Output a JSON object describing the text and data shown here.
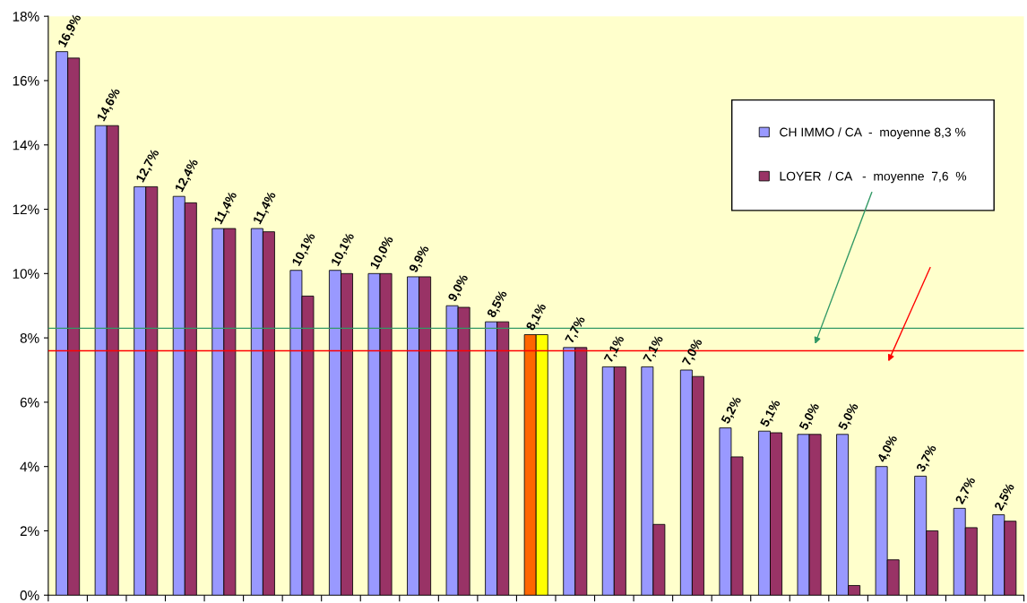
{
  "chart_data": {
    "type": "bar",
    "categories": [
      null,
      null,
      null,
      null,
      null,
      null,
      null,
      null,
      null,
      null,
      null,
      null,
      null,
      null,
      null,
      null,
      null,
      null,
      null,
      null,
      null,
      null,
      null,
      null,
      null
    ],
    "series": [
      {
        "name": "CH IMMO / CA  -  moyenne 8,3 %",
        "color": "#9999ff",
        "colors": [
          "#9999ff",
          "#9999ff",
          "#9999ff",
          "#9999ff",
          "#9999ff",
          "#9999ff",
          "#9999ff",
          "#9999ff",
          "#9999ff",
          "#9999ff",
          "#9999ff",
          "#9999ff",
          "#ff6600",
          "#9999ff",
          "#9999ff",
          "#9999ff",
          "#9999ff",
          "#9999ff",
          "#9999ff",
          "#9999ff",
          "#9999ff",
          "#9999ff",
          "#9999ff",
          "#9999ff",
          "#9999ff"
        ],
        "values": [
          16.9,
          14.6,
          12.7,
          12.4,
          11.4,
          11.4,
          10.1,
          10.1,
          10.0,
          9.9,
          9.0,
          8.5,
          8.1,
          7.7,
          7.1,
          7.1,
          7.0,
          5.2,
          5.1,
          5.0,
          5.0,
          4.0,
          3.7,
          2.7,
          2.5
        ],
        "value_labels": [
          "16,9%",
          "14,6%",
          "12,7%",
          "12,4%",
          "11,4%",
          "11,4%",
          "10,1%",
          "10,1%",
          "10,0%",
          "9,9%",
          "9,0%",
          "8,5%",
          "8,1%",
          "7,7%",
          "7,1%",
          "7,1%",
          "7,0%",
          "5,2%",
          "5,1%",
          "5,0%",
          "5,0%",
          "4,0%",
          "3,7%",
          "2,7%",
          "2,5%"
        ]
      },
      {
        "name": "LOYER  / CA   -  moyenne  7,6  %",
        "color": "#993366",
        "colors": [
          "#993366",
          "#993366",
          "#993366",
          "#993366",
          "#993366",
          "#993366",
          "#993366",
          "#993366",
          "#993366",
          "#993366",
          "#993366",
          "#993366",
          "#ffff00",
          "#993366",
          "#993366",
          "#993366",
          "#993366",
          "#993366",
          "#993366",
          "#993366",
          "#993366",
          "#993366",
          "#993366",
          "#993366",
          "#993366"
        ],
        "values": [
          16.7,
          14.6,
          12.7,
          12.2,
          11.4,
          11.3,
          9.3,
          10.0,
          10.0,
          9.9,
          8.95,
          8.5,
          8.1,
          7.7,
          7.1,
          2.2,
          6.8,
          4.3,
          5.05,
          5.0,
          0.3,
          1.1,
          2.0,
          2.1,
          2.3
        ]
      }
    ],
    "ylim": [
      0,
      18
    ],
    "yticks": [
      {
        "value": 0,
        "label": "0%"
      },
      {
        "value": 2,
        "label": "2%"
      },
      {
        "value": 4,
        "label": "4%"
      },
      {
        "value": 6,
        "label": "6%"
      },
      {
        "value": 8,
        "label": "8%"
      },
      {
        "value": 10,
        "label": "10%"
      },
      {
        "value": 12,
        "label": "12%"
      },
      {
        "value": 14,
        "label": "14%"
      },
      {
        "value": 16,
        "label": "16%"
      },
      {
        "value": 18,
        "label": "18%"
      }
    ],
    "ref_lines": [
      {
        "axis": "y",
        "value": 8.3,
        "color": "#339966"
      },
      {
        "axis": "y",
        "value": 7.6,
        "color": "#ff0000"
      }
    ],
    "grid": false,
    "legend": "top right"
  }
}
